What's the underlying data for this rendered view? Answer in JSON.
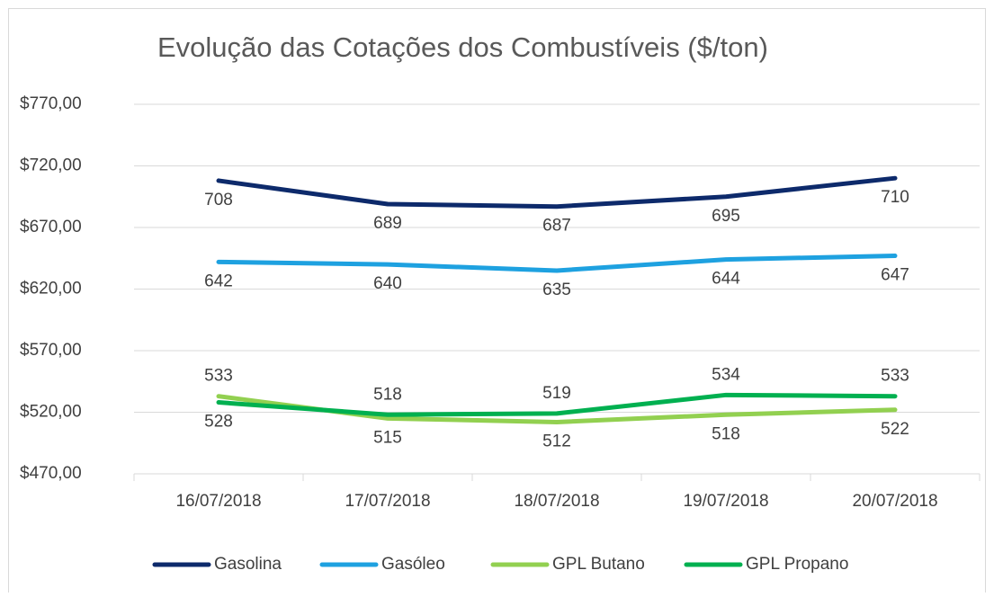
{
  "chart_data": {
    "type": "line",
    "title": "Evolução das Cotações dos Combustíveis ($/ton)",
    "categories": [
      "16/07/2018",
      "17/07/2018",
      "18/07/2018",
      "19/07/2018",
      "20/07/2018"
    ],
    "series": [
      {
        "name": "Gasolina",
        "color": "#0d2a6b",
        "values": [
          708,
          689,
          687,
          695,
          710
        ]
      },
      {
        "name": "Gasóleo",
        "color": "#1ea1e0",
        "values": [
          642,
          640,
          635,
          644,
          647
        ]
      },
      {
        "name": "GPL Butano",
        "color": "#92d050",
        "values": [
          533,
          515,
          512,
          518,
          522
        ]
      },
      {
        "name": "GPL Propano",
        "color": "#00b050",
        "values": [
          528,
          518,
          519,
          534,
          533
        ]
      }
    ],
    "ylim": [
      470,
      770
    ],
    "yticks": [
      {
        "value": 470,
        "label": "$470,00"
      },
      {
        "value": 520,
        "label": "$520,00"
      },
      {
        "value": 570,
        "label": "$570,00"
      },
      {
        "value": 620,
        "label": "$620,00"
      },
      {
        "value": 670,
        "label": "$670,00"
      },
      {
        "value": 720,
        "label": "$720,00"
      },
      {
        "value": 770,
        "label": "$770,00"
      }
    ],
    "grid": true,
    "legend": "bottom"
  }
}
